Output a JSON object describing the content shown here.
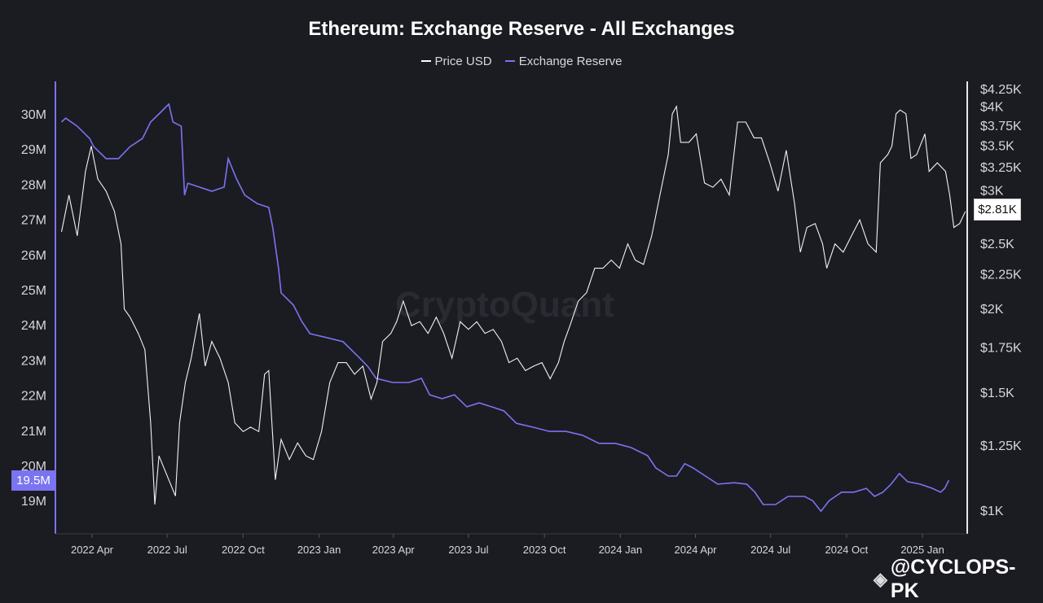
{
  "chart_data": {
    "type": "line",
    "title": "Ethereum: Exchange Reserve - All Exchanges",
    "legend_position": "top-center",
    "grid": false,
    "x_ticks": [
      "2022 Apr",
      "2022 Jul",
      "2022 Oct",
      "2023 Jan",
      "2023 Apr",
      "2023 Jul",
      "2023 Oct",
      "2024 Jan",
      "2024 Apr",
      "2024 Jul",
      "2024 Oct",
      "2025 Jan"
    ],
    "x_tick_dates": [
      "2022-04-01",
      "2022-07-01",
      "2022-10-01",
      "2023-01-01",
      "2023-04-01",
      "2023-07-01",
      "2023-10-01",
      "2024-01-01",
      "2024-04-01",
      "2024-07-01",
      "2024-10-01",
      "2025-01-01"
    ],
    "left_axis": {
      "ticks": [
        "30M",
        "29M",
        "28M",
        "27M",
        "26M",
        "25M",
        "24M",
        "23M",
        "22M",
        "21M",
        "20M",
        "19M"
      ],
      "tick_values": [
        30,
        29,
        28,
        27,
        26,
        25,
        24,
        23,
        22,
        21,
        20,
        19
      ],
      "range": [
        18.1,
        30.3
      ],
      "scale": "linear"
    },
    "right_axis": {
      "ticks": [
        "$4.25K",
        "$4K",
        "$3.75K",
        "$3.5K",
        "$3.25K",
        "$3K",
        "$2.5K",
        "$2.25K",
        "$2K",
        "$1.75K",
        "$1.5K",
        "$1.25K",
        "$1K"
      ],
      "tick_values": [
        4250,
        4000,
        3750,
        3500,
        3250,
        3000,
        2500,
        2250,
        2000,
        1750,
        1500,
        1250,
        1000
      ],
      "range": [
        880,
        4400
      ],
      "scale": "log"
    },
    "current_labels": {
      "reserve": "19.5M",
      "price": "$2.81K"
    },
    "series": [
      {
        "name": "Price USD",
        "color": "#ffffff",
        "axis": "right",
        "points": [
          [
            "2022-02-23",
            2600
          ],
          [
            "2022-03-04",
            2950
          ],
          [
            "2022-03-14",
            2565
          ],
          [
            "2022-03-24",
            3200
          ],
          [
            "2022-03-31",
            3490
          ],
          [
            "2022-04-08",
            3115
          ],
          [
            "2022-04-18",
            2990
          ],
          [
            "2022-04-28",
            2790
          ],
          [
            "2022-05-06",
            2495
          ],
          [
            "2022-05-10",
            1995
          ],
          [
            "2022-05-17",
            1940
          ],
          [
            "2022-05-27",
            1835
          ],
          [
            "2022-06-04",
            1735
          ],
          [
            "2022-06-11",
            1350
          ],
          [
            "2022-06-16",
            1020
          ],
          [
            "2022-06-21",
            1205
          ],
          [
            "2022-07-01",
            1125
          ],
          [
            "2022-07-11",
            1050
          ],
          [
            "2022-07-16",
            1350
          ],
          [
            "2022-07-23",
            1550
          ],
          [
            "2022-07-30",
            1685
          ],
          [
            "2022-08-09",
            1965
          ],
          [
            "2022-08-16",
            1640
          ],
          [
            "2022-08-24",
            1785
          ],
          [
            "2022-09-03",
            1685
          ],
          [
            "2022-09-13",
            1550
          ],
          [
            "2022-09-21",
            1350
          ],
          [
            "2022-10-01",
            1310
          ],
          [
            "2022-10-10",
            1330
          ],
          [
            "2022-10-20",
            1310
          ],
          [
            "2022-10-27",
            1595
          ],
          [
            "2022-11-01",
            1615
          ],
          [
            "2022-11-09",
            1110
          ],
          [
            "2022-11-16",
            1275
          ],
          [
            "2022-11-26",
            1190
          ],
          [
            "2022-12-06",
            1260
          ],
          [
            "2022-12-16",
            1205
          ],
          [
            "2022-12-25",
            1190
          ],
          [
            "2023-01-04",
            1310
          ],
          [
            "2023-01-14",
            1550
          ],
          [
            "2023-01-24",
            1660
          ],
          [
            "2023-02-03",
            1660
          ],
          [
            "2023-02-13",
            1595
          ],
          [
            "2023-02-23",
            1640
          ],
          [
            "2023-03-05",
            1465
          ],
          [
            "2023-03-12",
            1550
          ],
          [
            "2023-03-19",
            1785
          ],
          [
            "2023-03-29",
            1835
          ],
          [
            "2023-04-05",
            1910
          ],
          [
            "2023-04-13",
            2050
          ],
          [
            "2023-04-23",
            1885
          ],
          [
            "2023-05-03",
            1910
          ],
          [
            "2023-05-13",
            1835
          ],
          [
            "2023-05-23",
            1940
          ],
          [
            "2023-06-01",
            1835
          ],
          [
            "2023-06-11",
            1685
          ],
          [
            "2023-06-21",
            1910
          ],
          [
            "2023-07-01",
            1860
          ],
          [
            "2023-07-11",
            1910
          ],
          [
            "2023-07-21",
            1835
          ],
          [
            "2023-07-31",
            1860
          ],
          [
            "2023-08-10",
            1785
          ],
          [
            "2023-08-19",
            1660
          ],
          [
            "2023-08-29",
            1685
          ],
          [
            "2023-09-08",
            1615
          ],
          [
            "2023-09-18",
            1640
          ],
          [
            "2023-09-28",
            1660
          ],
          [
            "2023-10-08",
            1570
          ],
          [
            "2023-10-18",
            1660
          ],
          [
            "2023-10-25",
            1785
          ],
          [
            "2023-11-01",
            1885
          ],
          [
            "2023-11-11",
            2050
          ],
          [
            "2023-11-21",
            2110
          ],
          [
            "2023-12-01",
            2295
          ],
          [
            "2023-12-11",
            2295
          ],
          [
            "2023-12-21",
            2360
          ],
          [
            "2023-12-31",
            2295
          ],
          [
            "2024-01-10",
            2495
          ],
          [
            "2024-01-19",
            2360
          ],
          [
            "2024-01-29",
            2325
          ],
          [
            "2024-02-08",
            2565
          ],
          [
            "2024-02-18",
            2950
          ],
          [
            "2024-02-28",
            3390
          ],
          [
            "2024-03-04",
            3900
          ],
          [
            "2024-03-09",
            4000
          ],
          [
            "2024-03-14",
            3535
          ],
          [
            "2024-03-24",
            3535
          ],
          [
            "2024-04-02",
            3640
          ],
          [
            "2024-04-12",
            3075
          ],
          [
            "2024-04-22",
            3030
          ],
          [
            "2024-05-02",
            3115
          ],
          [
            "2024-05-12",
            2950
          ],
          [
            "2024-05-22",
            3790
          ],
          [
            "2024-06-01",
            3790
          ],
          [
            "2024-06-11",
            3590
          ],
          [
            "2024-06-20",
            3590
          ],
          [
            "2024-06-30",
            3295
          ],
          [
            "2024-07-10",
            2990
          ],
          [
            "2024-07-20",
            3440
          ],
          [
            "2024-07-30",
            2865
          ],
          [
            "2024-08-06",
            2425
          ],
          [
            "2024-08-14",
            2640
          ],
          [
            "2024-08-24",
            2675
          ],
          [
            "2024-09-02",
            2495
          ],
          [
            "2024-09-07",
            2295
          ],
          [
            "2024-09-17",
            2495
          ],
          [
            "2024-09-27",
            2425
          ],
          [
            "2024-10-07",
            2565
          ],
          [
            "2024-10-17",
            2710
          ],
          [
            "2024-10-27",
            2495
          ],
          [
            "2024-11-06",
            2425
          ],
          [
            "2024-11-11",
            3295
          ],
          [
            "2024-11-20",
            3390
          ],
          [
            "2024-11-25",
            3490
          ],
          [
            "2024-11-30",
            3900
          ],
          [
            "2024-12-05",
            3950
          ],
          [
            "2024-12-12",
            3900
          ],
          [
            "2024-12-18",
            3345
          ],
          [
            "2024-12-25",
            3390
          ],
          [
            "2025-01-04",
            3640
          ],
          [
            "2025-01-09",
            3200
          ],
          [
            "2025-01-19",
            3295
          ],
          [
            "2025-01-29",
            3200
          ],
          [
            "2025-02-03",
            2950
          ],
          [
            "2025-02-08",
            2640
          ],
          [
            "2025-02-15",
            2675
          ],
          [
            "2025-02-22",
            2790
          ]
        ]
      },
      {
        "name": "Exchange Reserve",
        "color": "#7a74f0",
        "axis": "left",
        "points": [
          [
            "2022-02-23",
            29.77
          ],
          [
            "2022-02-28",
            29.88
          ],
          [
            "2022-03-14",
            29.65
          ],
          [
            "2022-03-29",
            29.3
          ],
          [
            "2022-04-03",
            29.07
          ],
          [
            "2022-04-18",
            28.73
          ],
          [
            "2022-05-03",
            28.73
          ],
          [
            "2022-05-17",
            29.07
          ],
          [
            "2022-06-01",
            29.3
          ],
          [
            "2022-06-11",
            29.77
          ],
          [
            "2022-06-21",
            30.0
          ],
          [
            "2022-07-03",
            30.28
          ],
          [
            "2022-07-08",
            29.77
          ],
          [
            "2022-07-18",
            29.65
          ],
          [
            "2022-07-22",
            27.69
          ],
          [
            "2022-07-26",
            28.03
          ],
          [
            "2022-08-09",
            27.92
          ],
          [
            "2022-08-24",
            27.8
          ],
          [
            "2022-09-08",
            27.92
          ],
          [
            "2022-09-13",
            28.73
          ],
          [
            "2022-09-23",
            28.15
          ],
          [
            "2022-10-03",
            27.69
          ],
          [
            "2022-10-18",
            27.45
          ],
          [
            "2022-11-01",
            27.34
          ],
          [
            "2022-11-06",
            26.76
          ],
          [
            "2022-11-13",
            25.6
          ],
          [
            "2022-11-16",
            24.91
          ],
          [
            "2022-12-01",
            24.56
          ],
          [
            "2022-12-11",
            24.1
          ],
          [
            "2022-12-21",
            23.75
          ],
          [
            "2023-01-10",
            23.64
          ],
          [
            "2023-01-30",
            23.52
          ],
          [
            "2023-02-19",
            23.06
          ],
          [
            "2023-03-01",
            22.82
          ],
          [
            "2023-03-11",
            22.48
          ],
          [
            "2023-03-31",
            22.36
          ],
          [
            "2023-04-20",
            22.36
          ],
          [
            "2023-05-05",
            22.48
          ],
          [
            "2023-05-15",
            22.01
          ],
          [
            "2023-05-30",
            21.9
          ],
          [
            "2023-06-14",
            22.01
          ],
          [
            "2023-06-29",
            21.67
          ],
          [
            "2023-07-14",
            21.78
          ],
          [
            "2023-07-29",
            21.67
          ],
          [
            "2023-08-13",
            21.55
          ],
          [
            "2023-08-28",
            21.2
          ],
          [
            "2023-09-17",
            21.09
          ],
          [
            "2023-10-07",
            20.97
          ],
          [
            "2023-10-27",
            20.97
          ],
          [
            "2023-11-16",
            20.86
          ],
          [
            "2023-12-06",
            20.63
          ],
          [
            "2023-12-26",
            20.63
          ],
          [
            "2024-01-14",
            20.51
          ],
          [
            "2024-02-03",
            20.28
          ],
          [
            "2024-02-13",
            19.93
          ],
          [
            "2024-02-28",
            19.7
          ],
          [
            "2024-03-09",
            19.7
          ],
          [
            "2024-03-19",
            20.05
          ],
          [
            "2024-03-29",
            19.93
          ],
          [
            "2024-04-13",
            19.7
          ],
          [
            "2024-04-28",
            19.47
          ],
          [
            "2024-05-18",
            19.51
          ],
          [
            "2024-06-02",
            19.47
          ],
          [
            "2024-06-12",
            19.24
          ],
          [
            "2024-06-22",
            18.89
          ],
          [
            "2024-07-07",
            18.89
          ],
          [
            "2024-07-22",
            19.12
          ],
          [
            "2024-08-11",
            19.12
          ],
          [
            "2024-08-21",
            19.0
          ],
          [
            "2024-08-31",
            18.7
          ],
          [
            "2024-09-10",
            19.0
          ],
          [
            "2024-09-25",
            19.24
          ],
          [
            "2024-10-10",
            19.24
          ],
          [
            "2024-10-25",
            19.35
          ],
          [
            "2024-11-04",
            19.12
          ],
          [
            "2024-11-14",
            19.24
          ],
          [
            "2024-11-24",
            19.47
          ],
          [
            "2024-12-04",
            19.77
          ],
          [
            "2024-12-14",
            19.54
          ],
          [
            "2024-12-29",
            19.47
          ],
          [
            "2025-01-13",
            19.35
          ],
          [
            "2025-01-23",
            19.24
          ],
          [
            "2025-01-28",
            19.35
          ],
          [
            "2025-02-02",
            19.58
          ]
        ]
      }
    ]
  },
  "watermark": "CryptoQuant",
  "credit": "@CYCLOPS-PK"
}
